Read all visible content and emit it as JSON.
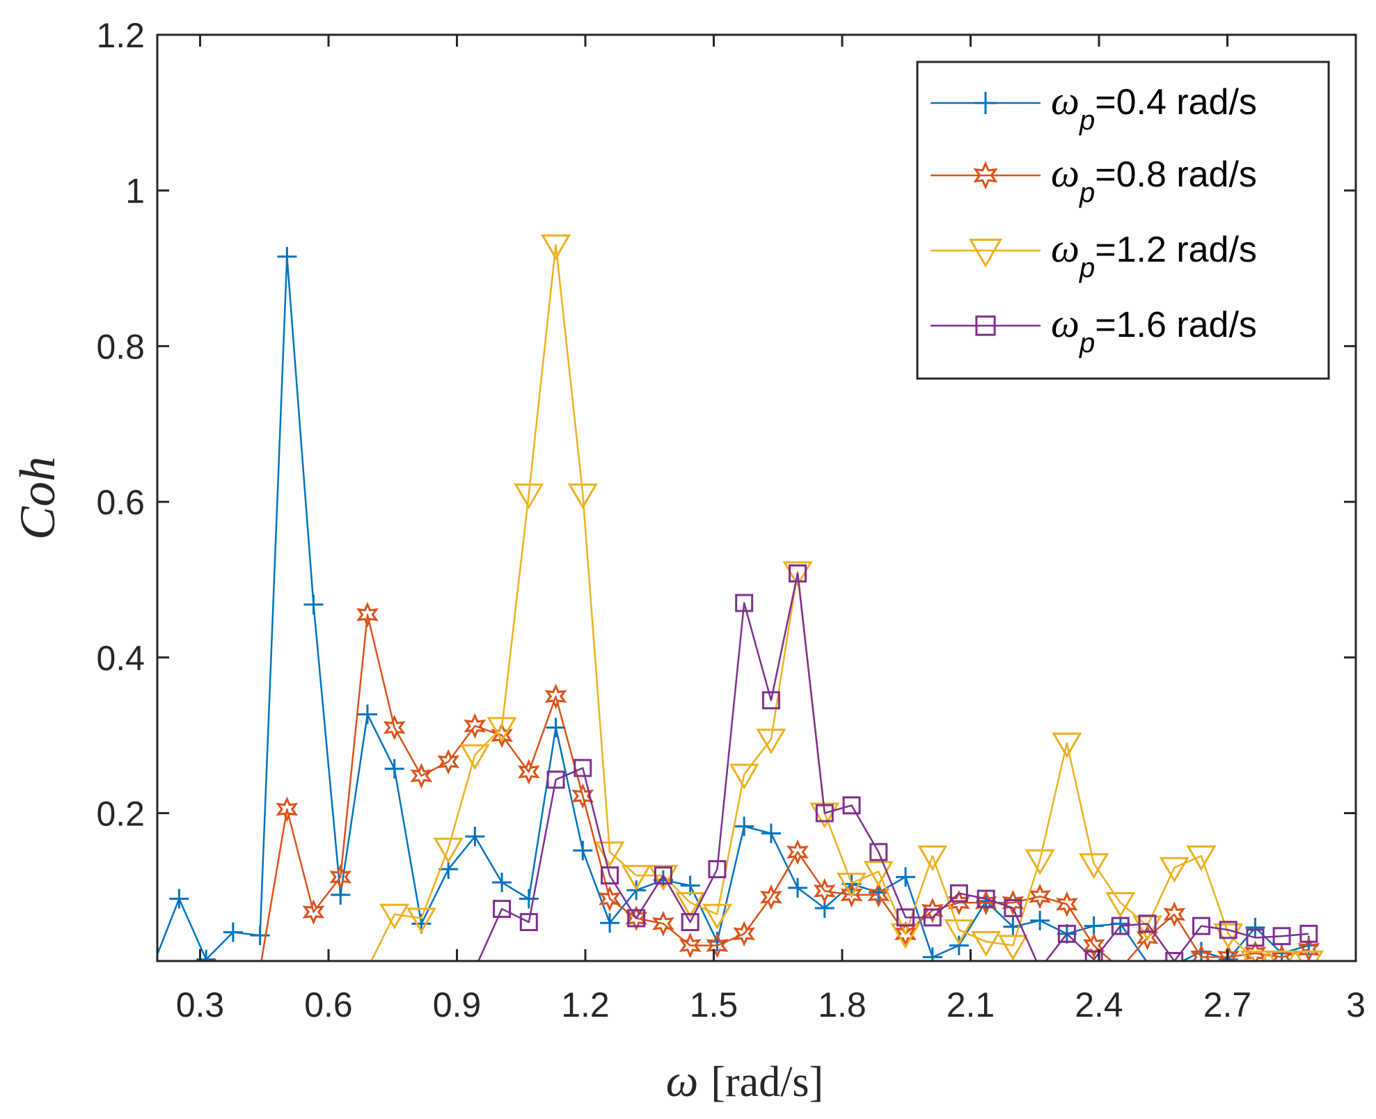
{
  "chart_data": {
    "type": "line",
    "xlabel_symbol": "ω",
    "xlabel_unit": "[rad/s]",
    "ylabel": "Coh",
    "xlim": [
      0.2,
      3.0
    ],
    "ylim": [
      0.01,
      1.2
    ],
    "xticks": [
      "0.3",
      "0.6",
      "0.9",
      "1.2",
      "1.5",
      "1.8",
      "2.1",
      "2.4",
      "2.7",
      "3"
    ],
    "xtick_values": [
      0.3,
      0.6,
      0.9,
      1.2,
      1.5,
      1.8,
      2.1,
      2.4,
      2.7,
      3.0
    ],
    "yticks": [
      "0.2",
      "0.4",
      "0.6",
      "0.8",
      "1",
      "1.2"
    ],
    "ytick_values": [
      0.2,
      0.4,
      0.6,
      0.8,
      1.0,
      1.2
    ],
    "legend_position": "top-right",
    "series": [
      {
        "symbol": "ω",
        "subscript": "p",
        "label_rest": "=0.4 rad/s",
        "color": "#0072BD",
        "marker": "plus",
        "x": [
          0.189,
          0.251,
          0.314,
          0.377,
          0.44,
          0.503,
          0.565,
          0.628,
          0.691,
          0.754,
          0.817,
          0.88,
          0.942,
          1.005,
          1.068,
          1.131,
          1.194,
          1.257,
          1.319,
          1.382,
          1.445,
          1.508,
          1.571,
          1.634,
          1.696,
          1.759,
          1.822,
          1.885,
          1.948,
          2.011,
          2.073,
          2.136,
          2.199,
          2.262,
          2.325,
          2.388,
          2.45,
          2.513,
          2.576,
          2.639,
          2.702,
          2.765,
          2.827,
          2.89
        ],
        "y": [
          0.003,
          0.09,
          0.012,
          0.047,
          0.043,
          0.915,
          0.468,
          0.095,
          0.327,
          0.257,
          0.058,
          0.128,
          0.17,
          0.111,
          0.09,
          0.31,
          0.152,
          0.059,
          0.101,
          0.114,
          0.107,
          0.035,
          0.183,
          0.174,
          0.104,
          0.078,
          0.109,
          0.098,
          0.118,
          0.015,
          0.03,
          0.087,
          0.054,
          0.062,
          0.045,
          0.055,
          0.058,
          0.008,
          0.005,
          0.022,
          0.012,
          0.053,
          0.02,
          0.03
        ]
      },
      {
        "symbol": "ω",
        "subscript": "p",
        "label_rest": "=0.8 rad/s",
        "color": "#D95319",
        "marker": "hexagram",
        "x": [
          0.44,
          0.503,
          0.565,
          0.628,
          0.691,
          0.754,
          0.817,
          0.88,
          0.942,
          1.005,
          1.068,
          1.131,
          1.194,
          1.257,
          1.319,
          1.382,
          1.445,
          1.508,
          1.571,
          1.634,
          1.696,
          1.759,
          1.822,
          1.885,
          1.948,
          2.011,
          2.073,
          2.136,
          2.199,
          2.262,
          2.325,
          2.388,
          2.45,
          2.513,
          2.576,
          2.639,
          2.702,
          2.765,
          2.827,
          2.89
        ],
        "y": [
          0.0,
          0.205,
          0.073,
          0.118,
          0.455,
          0.31,
          0.248,
          0.266,
          0.312,
          0.3,
          0.253,
          0.35,
          0.222,
          0.09,
          0.065,
          0.058,
          0.03,
          0.03,
          0.045,
          0.092,
          0.15,
          0.1,
          0.095,
          0.095,
          0.045,
          0.075,
          0.085,
          0.085,
          0.085,
          0.093,
          0.083,
          0.03,
          0.0,
          0.04,
          0.07,
          0.015,
          0.015,
          0.02,
          0.015,
          0.025
        ]
      },
      {
        "symbol": "ω",
        "subscript": "p",
        "label_rest": "=1.2 rad/s",
        "color": "#EDB120",
        "marker": "triangle-down",
        "x": [
          0.691,
          0.754,
          0.817,
          0.88,
          0.942,
          1.005,
          1.068,
          1.131,
          1.194,
          1.257,
          1.319,
          1.382,
          1.445,
          1.508,
          1.571,
          1.634,
          1.696,
          1.759,
          1.822,
          1.885,
          1.948,
          2.011,
          2.073,
          2.136,
          2.199,
          2.262,
          2.325,
          2.388,
          2.45,
          2.513,
          2.576,
          2.639,
          2.702,
          2.765,
          2.827,
          2.89
        ],
        "y": [
          0.0,
          0.07,
          0.065,
          0.155,
          0.275,
          0.31,
          0.61,
          0.93,
          0.61,
          0.15,
          0.12,
          0.12,
          0.085,
          0.07,
          0.25,
          0.295,
          0.51,
          0.2,
          0.11,
          0.125,
          0.045,
          0.145,
          0.05,
          0.035,
          0.03,
          0.14,
          0.29,
          0.135,
          0.085,
          0.055,
          0.13,
          0.145,
          0.045,
          0.01,
          0.01,
          0.01
        ]
      },
      {
        "symbol": "ω",
        "subscript": "p",
        "label_rest": "=1.6 rad/s",
        "color": "#7E2F8E",
        "marker": "square",
        "x": [
          0.942,
          1.005,
          1.068,
          1.131,
          1.194,
          1.257,
          1.319,
          1.382,
          1.445,
          1.508,
          1.571,
          1.634,
          1.696,
          1.759,
          1.822,
          1.885,
          1.948,
          2.011,
          2.073,
          2.136,
          2.199,
          2.262,
          2.325,
          2.388,
          2.45,
          2.513,
          2.576,
          2.639,
          2.702,
          2.765,
          2.827,
          2.89
        ],
        "y": [
          0.0,
          0.077,
          0.06,
          0.243,
          0.258,
          0.12,
          0.065,
          0.12,
          0.06,
          0.128,
          0.47,
          0.345,
          0.508,
          0.2,
          0.21,
          0.15,
          0.066,
          0.066,
          0.097,
          0.09,
          0.078,
          0.0,
          0.045,
          0.012,
          0.055,
          0.058,
          0.01,
          0.055,
          0.05,
          0.04,
          0.042,
          0.045
        ]
      }
    ]
  }
}
